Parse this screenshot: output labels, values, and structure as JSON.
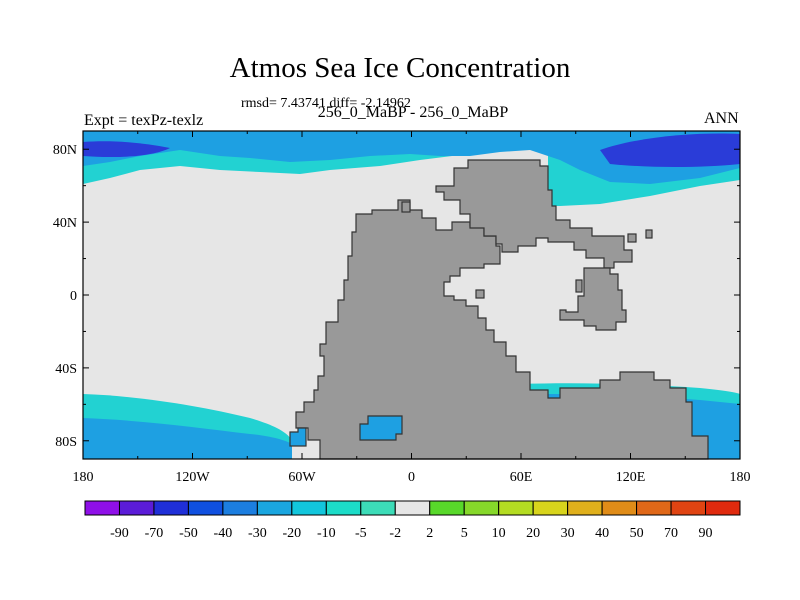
{
  "chart_data": {
    "type": "heatmap",
    "title": "Atmos Sea Ice Concentration",
    "stats_text": "rmsd= 7.43741 diff= -2.14962",
    "subtitle": "256_0_MaBP - 256_0_MaBP",
    "left_label": "Expt = texPz-texlz",
    "right_label": "ANN",
    "x_ticks": [
      "180",
      "120W",
      "60W",
      "0",
      "60E",
      "120E",
      "180"
    ],
    "y_ticks": [
      "80N",
      "40N",
      "0",
      "40S",
      "80S"
    ],
    "x_range": [
      -180,
      180
    ],
    "y_range": [
      -90,
      90
    ],
    "colorbar": {
      "labels": [
        "-90",
        "-70",
        "-50",
        "-40",
        "-30",
        "-20",
        "-10",
        "-5",
        "-2",
        "2",
        "5",
        "10",
        "20",
        "30",
        "40",
        "50",
        "70",
        "90"
      ],
      "colors": [
        "#8f10e8",
        "#5b1cd8",
        "#1f2fd8",
        "#1050e0",
        "#1c7ee0",
        "#1aa6e0",
        "#12c6dc",
        "#1cdcc8",
        "#3cdcb8",
        "#e6e6e6",
        "#58d82a",
        "#86d82a",
        "#b4dc22",
        "#d8d41c",
        "#e0b01c",
        "#e08c18",
        "#e06818",
        "#e04412",
        "#e02a0e"
      ]
    },
    "colors": {
      "land": "#999999",
      "no_change": "#e6e6e6",
      "deep_negative": "#2a3cd8",
      "mid_negative": "#1ea0e2",
      "light_negative": "#22d2d2",
      "positive_tail": "#e04412"
    }
  }
}
